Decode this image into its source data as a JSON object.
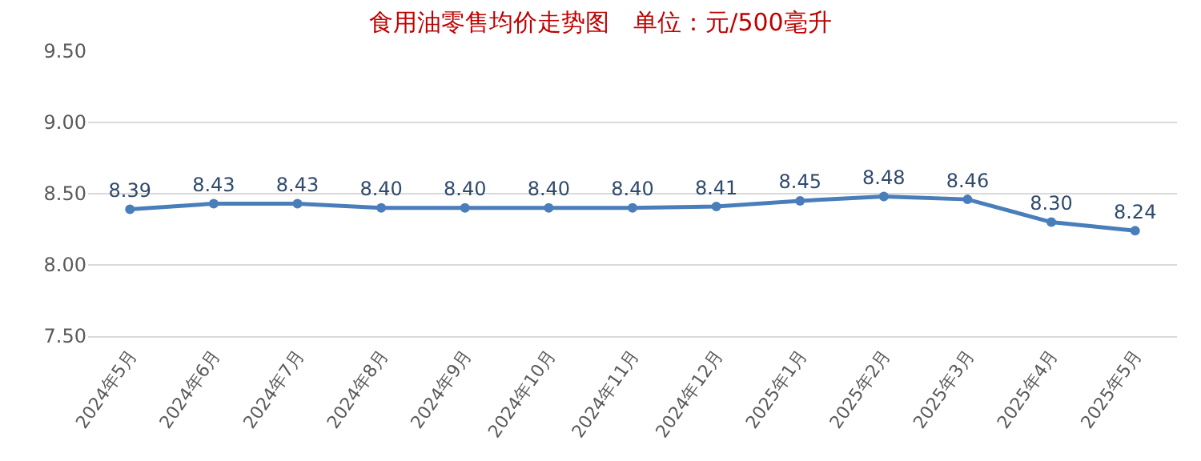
{
  "chart_data": {
    "type": "line",
    "title": "食用油零售均价走势图　单位：元/500毫升",
    "categories": [
      "2024年5月",
      "2024年6月",
      "2024年7月",
      "2024年8月",
      "2024年9月",
      "2024年10月",
      "2024年11月",
      "2024年12月",
      "2025年1月",
      "2025年2月",
      "2025年3月",
      "2025年4月",
      "2025年5月"
    ],
    "series": [
      {
        "color": "#4a7ebb",
        "values": [
          8.39,
          8.43,
          8.43,
          8.4,
          8.4,
          8.4,
          8.4,
          8.41,
          8.45,
          8.48,
          8.46,
          8.3,
          8.24
        ]
      }
    ],
    "value_labels": [
      "8.39",
      "8.43",
      "8.43",
      "8.40",
      "8.40",
      "8.40",
      "8.40",
      "8.41",
      "8.45",
      "8.48",
      "8.46",
      "8.30",
      "8.24"
    ],
    "ylim": [
      7.5,
      9.5
    ],
    "yticks": [
      {
        "value": 7.5,
        "label": "7.50"
      },
      {
        "value": 8,
        "label": "8.00"
      },
      {
        "value": 8.5,
        "label": "8.50"
      },
      {
        "value": 9,
        "label": "9.00"
      },
      {
        "value": 9.5,
        "label": "9.50"
      }
    ],
    "grid": "y",
    "marker": "circle",
    "line_style": "solid",
    "legend": false
  }
}
